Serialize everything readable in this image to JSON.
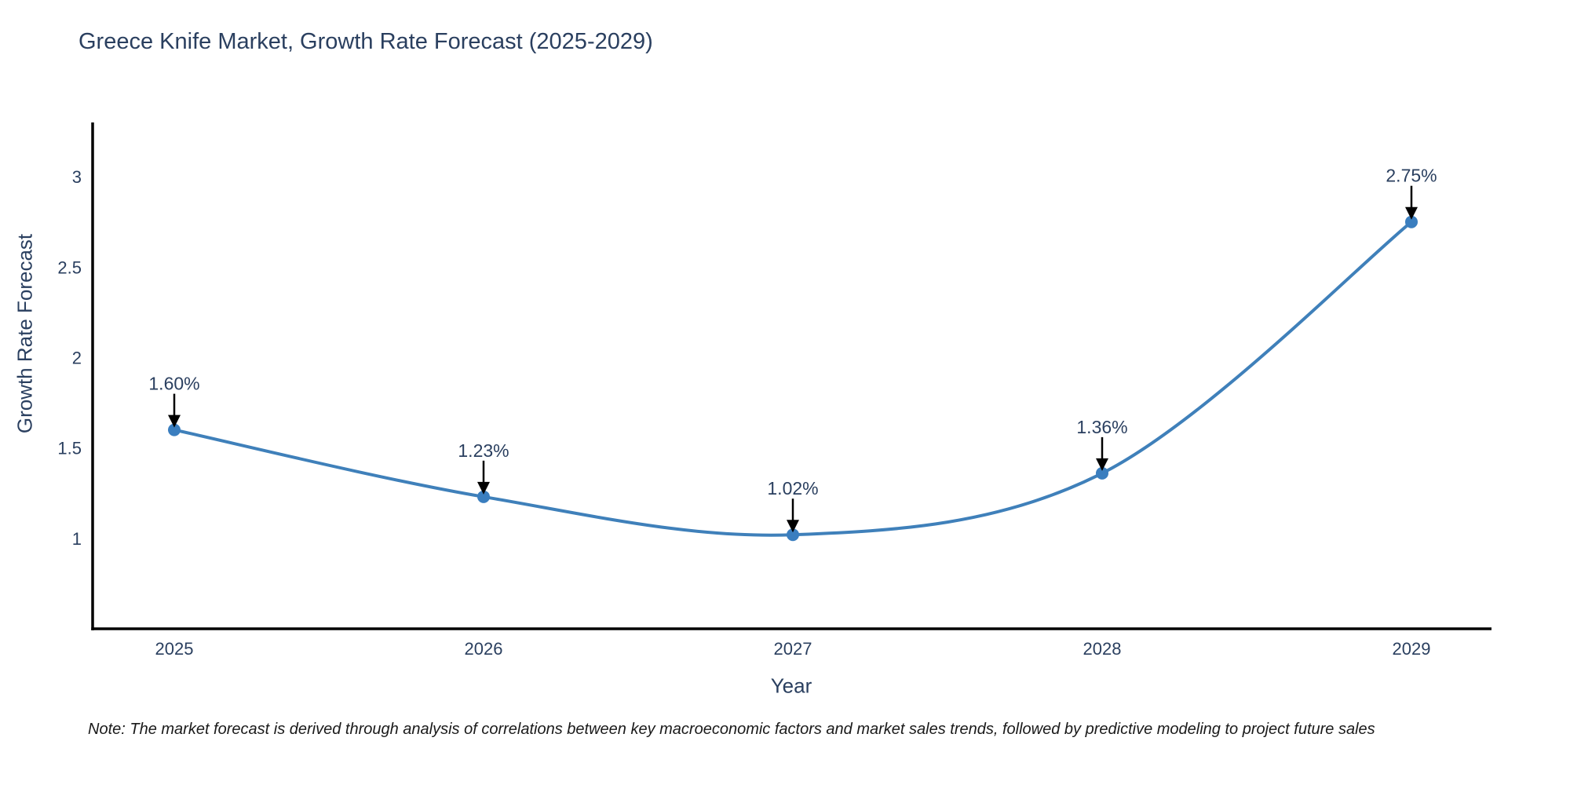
{
  "title": "Greece Knife Market, Growth Rate Forecast (2025-2029)",
  "note": "Note: The market forecast is derived through analysis of correlations between key macroeconomic factors and market sales trends, followed by predictive modeling to project future sales",
  "chart_data": {
    "type": "line",
    "title": "Greece Knife Market, Growth Rate Forecast (2025-2029)",
    "categories": [
      "2025",
      "2026",
      "2027",
      "2028",
      "2029"
    ],
    "series": [
      {
        "name": "Growth Rate Forecast",
        "values": [
          1.6,
          1.23,
          1.02,
          1.36,
          2.75
        ],
        "point_labels": [
          "1.60%",
          "1.23%",
          "1.02%",
          "1.36%",
          "2.75%"
        ]
      }
    ],
    "xlabel": "Year",
    "ylabel": "Growth Rate Forecast",
    "yticks": [
      1,
      1.5,
      2,
      2.5,
      3
    ],
    "ylim": [
      0.5,
      3.3
    ],
    "grid": false,
    "legend": "none",
    "line_shape": "spline",
    "annotation_style": "value labels above points with downward black arrows",
    "colors": {
      "line": "#3f80ba",
      "marker": "#3a7ebf",
      "arrow": "#000000",
      "axis": "#000000",
      "text": "#2a3f5f"
    }
  }
}
